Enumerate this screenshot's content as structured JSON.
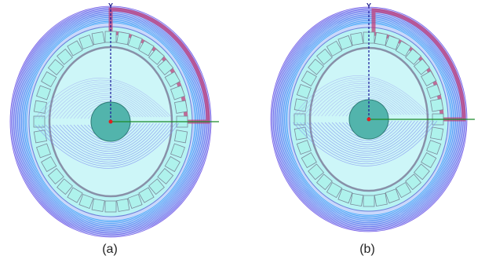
{
  "panels": [
    {
      "caption": "(a)",
      "axis_label": "Y"
    },
    {
      "caption": "(b)",
      "axis_label": "Y"
    }
  ]
}
